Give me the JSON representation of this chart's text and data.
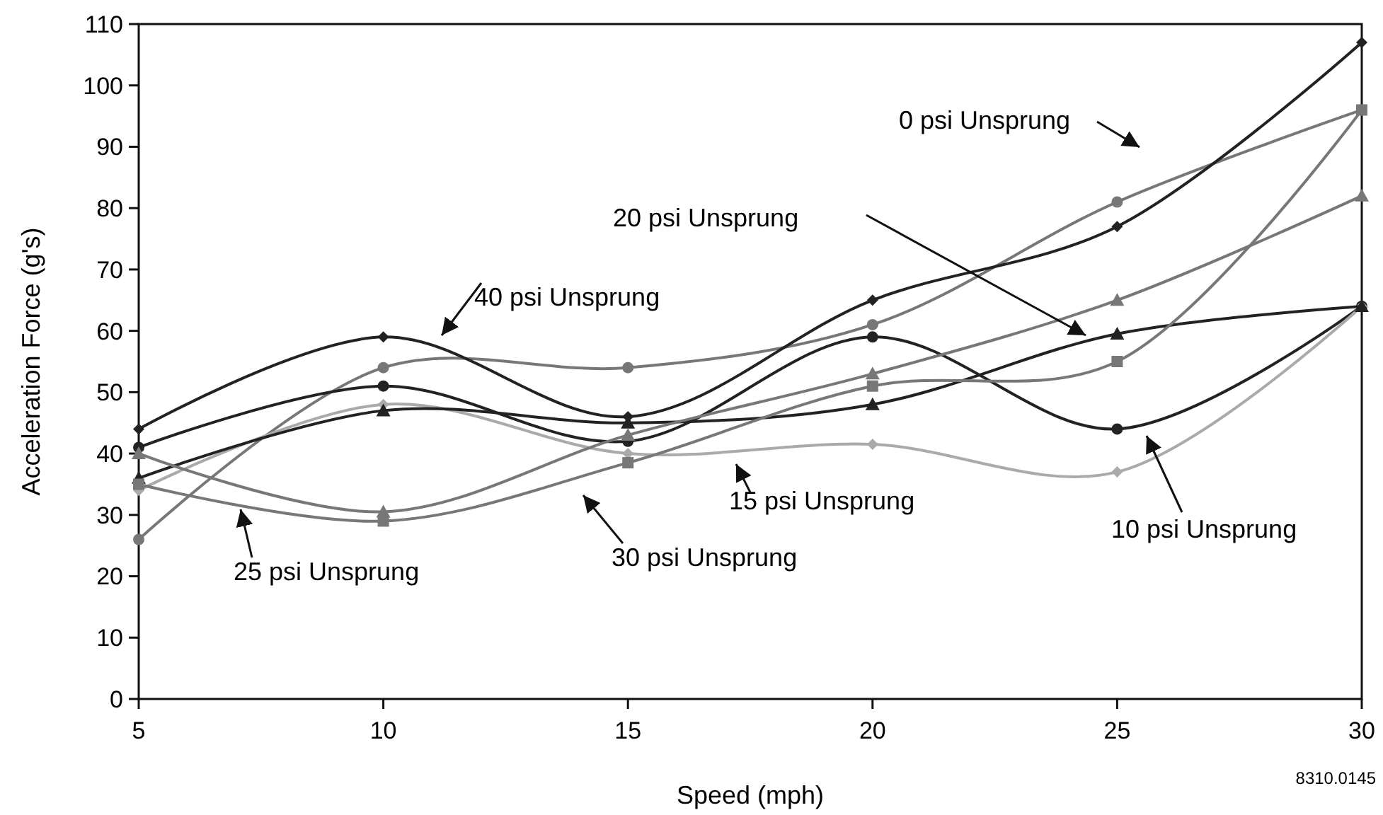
{
  "chart_data": {
    "type": "line",
    "xlabel": "Speed (mph)",
    "ylabel": "Acceleration Force (g's)",
    "x": [
      5,
      10,
      15,
      20,
      25,
      30
    ],
    "xlim": [
      5,
      30
    ],
    "xticks": [
      5,
      10,
      15,
      20,
      25,
      30
    ],
    "ylim": [
      0,
      110
    ],
    "yticks": [
      0,
      10,
      20,
      30,
      40,
      50,
      60,
      70,
      80,
      90,
      100,
      110
    ],
    "grid": false,
    "series": [
      {
        "color": "#777777",
        "marker": "circle",
        "values": [
          26,
          54,
          54,
          61,
          81,
          96
        ]
      },
      {
        "color": "#222222",
        "marker": "circle",
        "values": [
          41,
          51,
          42,
          59,
          44,
          64
        ]
      },
      {
        "color": "#aaaaaa",
        "marker": "diamond",
        "values": [
          34,
          48,
          40,
          41.5,
          37,
          64
        ]
      },
      {
        "color": "#222222",
        "marker": "triangle",
        "values": [
          36,
          47,
          45,
          48,
          59.5,
          64
        ]
      },
      {
        "color": "#777777",
        "marker": "triangle",
        "values": [
          40,
          30.5,
          43,
          53,
          65,
          82
        ]
      },
      {
        "color": "#777777",
        "marker": "square",
        "values": [
          35,
          29,
          38.5,
          51,
          55,
          96
        ]
      },
      {
        "color": "#222222",
        "marker": "diamond",
        "values": [
          44,
          59,
          46,
          65,
          77,
          107
        ]
      }
    ],
    "annotations": [
      "0 psi Unsprung",
      "10 psi Unsprung",
      "15 psi Unsprung",
      "20 psi Unsprung",
      "25 psi Unsprung",
      "30 psi Unsprung",
      "40 psi Unsprung",
      "8310.0145"
    ]
  }
}
